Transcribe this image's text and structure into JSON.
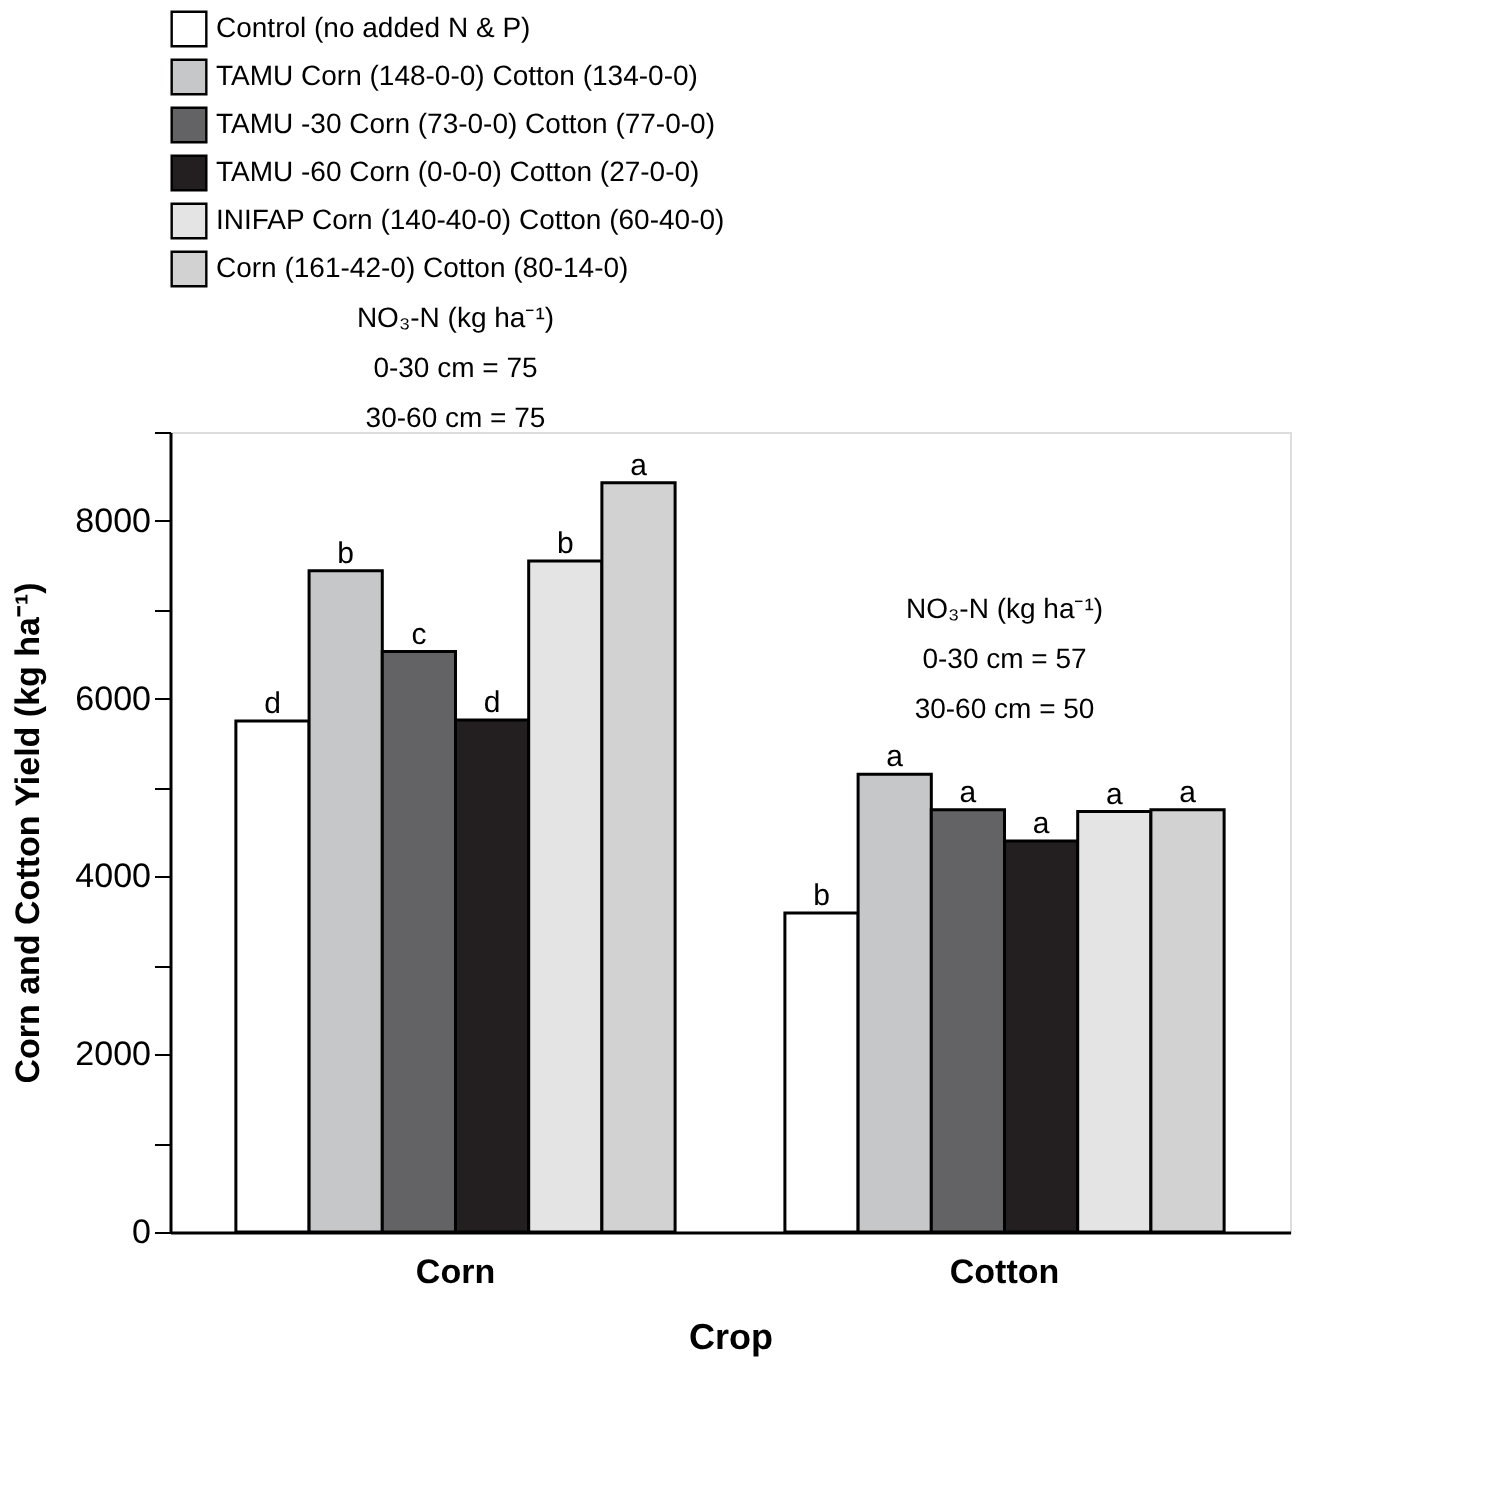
{
  "chart_data": {
    "type": "bar",
    "xlabel": "Crop",
    "ylabel": "Corn and Cotton Yield (kg ha⁻¹)",
    "categories": [
      "Corn",
      "Cotton"
    ],
    "series": [
      {
        "name": "Control (no added N & P)",
        "color": "#ffffff",
        "values": [
          5750,
          3590
        ],
        "value_labels": [
          "d",
          "b"
        ]
      },
      {
        "name": "TAMU Corn (148-0-0) Cotton (134-0-0)",
        "color": "#c6c7c9",
        "values": [
          7440,
          5150
        ],
        "value_labels": [
          "b",
          "a"
        ]
      },
      {
        "name": "TAMU -30 Corn (73-0-0) Cotton (77-0-0)",
        "color": "#636365",
        "values": [
          6530,
          4750
        ],
        "value_labels": [
          "c",
          "a"
        ]
      },
      {
        "name": "TAMU -60 Corn (0-0-0) Cotton (27-0-0)",
        "color": "#231f20",
        "values": [
          5760,
          4400
        ],
        "value_labels": [
          "d",
          "a"
        ]
      },
      {
        "name": "INIFAP Corn (140-40-0) Cotton (60-40-0)",
        "color": "#e4e4e4",
        "values": [
          7550,
          4730
        ],
        "value_labels": [
          "b",
          "a"
        ]
      },
      {
        "name": "Corn (161-42-0) Cotton (80-14-0)",
        "color": "#d2d2d2",
        "values": [
          8430,
          4750
        ],
        "value_labels": [
          "a",
          "a"
        ]
      }
    ],
    "ylim": [
      0,
      9000
    ],
    "yticks": [
      0,
      {
        "value": 1000,
        "label": null
      },
      2000,
      {
        "value": 3000,
        "label": null
      },
      4000,
      {
        "value": 5000,
        "label": null
      },
      6000,
      {
        "value": 7000,
        "label": null
      },
      8000,
      {
        "value": 9000,
        "label": null
      }
    ],
    "annotations": [
      "NO₃-N (kg ha⁻¹)",
      "0-30 cm = 75",
      "30-60 cm = 75",
      "NO₃-N (kg ha⁻¹)",
      "0-30 cm = 57",
      "30-60 cm = 50"
    ],
    "legend": "top",
    "grid": false
  }
}
